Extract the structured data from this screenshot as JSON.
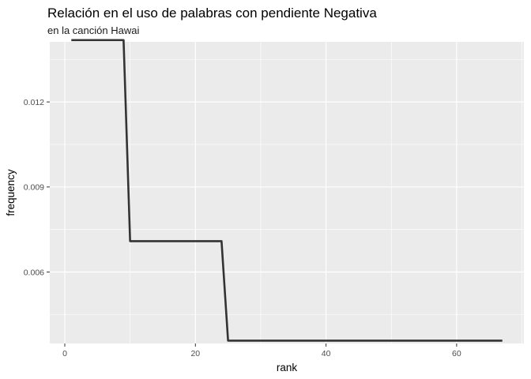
{
  "chart_data": {
    "type": "line",
    "title": "Relación en el uso de palabras con pendiente Negativa",
    "subtitle": "en la canción Hawai",
    "xlabel": "rank",
    "ylabel": "frequency",
    "xlim": [
      -2.3,
      70.3
    ],
    "ylim": [
      0.00348,
      0.01412
    ],
    "x_ticks": [
      0,
      20,
      40,
      60
    ],
    "x_tick_labels": [
      "0",
      "20",
      "40",
      "60"
    ],
    "y_ticks": [
      0.006,
      0.009,
      0.012
    ],
    "y_tick_labels": [
      "0.006",
      "0.009",
      "0.012"
    ],
    "grid": true,
    "background": "#ebebeb",
    "grid_color": "#ffffff",
    "line_color": "#333333",
    "series": [
      {
        "x": [
          1,
          9,
          10,
          24,
          25,
          67
        ],
        "y": [
          0.01418,
          0.01418,
          0.00709,
          0.00709,
          0.00358,
          0.00358
        ]
      }
    ]
  }
}
